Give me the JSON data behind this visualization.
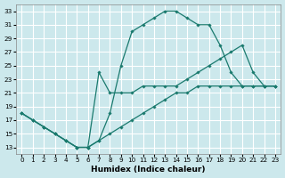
{
  "xlabel": "Humidex (Indice chaleur)",
  "bg_color": "#cce8ec",
  "grid_color": "#ffffff",
  "line_color": "#1a7a6e",
  "xlim": [
    -0.5,
    23.5
  ],
  "ylim": [
    12,
    34
  ],
  "xticks": [
    0,
    1,
    2,
    3,
    4,
    5,
    6,
    7,
    8,
    9,
    10,
    11,
    12,
    13,
    14,
    15,
    16,
    17,
    18,
    19,
    20,
    21,
    22,
    23
  ],
  "yticks": [
    13,
    15,
    17,
    19,
    21,
    23,
    25,
    27,
    29,
    31,
    33
  ],
  "curve1_x": [
    0,
    1,
    2,
    3,
    4,
    5,
    6,
    7,
    8,
    9,
    10,
    11,
    12,
    13,
    14,
    15,
    16,
    17,
    18,
    19,
    20,
    21,
    22,
    23
  ],
  "curve1_y": [
    18,
    17,
    16,
    15,
    14,
    13,
    13,
    14,
    18,
    25,
    30,
    31,
    32,
    33,
    33,
    32,
    31,
    31,
    28,
    24,
    22,
    22,
    22,
    22
  ],
  "curve2_x": [
    0,
    1,
    2,
    3,
    4,
    5,
    6,
    7,
    8,
    9,
    10,
    11,
    12,
    13,
    14,
    15,
    16,
    17,
    18,
    19,
    20,
    21,
    22,
    23
  ],
  "curve2_y": [
    18,
    17,
    16,
    15,
    14,
    13,
    13,
    24,
    21,
    21,
    21,
    22,
    22,
    22,
    22,
    23,
    24,
    25,
    26,
    27,
    28,
    24,
    22,
    22
  ],
  "curve3_x": [
    0,
    1,
    2,
    3,
    4,
    5,
    6,
    7,
    8,
    9,
    10,
    11,
    12,
    13,
    14,
    15,
    16,
    17,
    18,
    19,
    20,
    21,
    22,
    23
  ],
  "curve3_y": [
    18,
    17,
    16,
    15,
    14,
    13,
    13,
    14,
    15,
    16,
    17,
    18,
    19,
    20,
    21,
    21,
    22,
    22,
    22,
    22,
    22,
    22,
    22,
    22
  ]
}
